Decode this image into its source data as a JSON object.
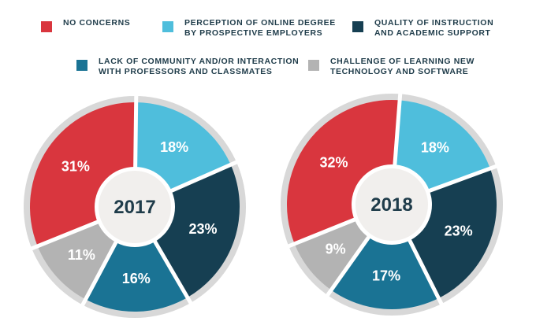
{
  "legend": [
    {
      "key": "no_concerns",
      "label": "NO CONCERNS",
      "color": "#d9363e"
    },
    {
      "key": "perception",
      "label": "PERCEPTION OF ONLINE DEGREE\nBY PROSPECTIVE EMPLOYERS",
      "color": "#4fbedc"
    },
    {
      "key": "quality",
      "label": "QUALITY OF INSTRUCTION\nAND ACADEMIC SUPPORT",
      "color": "#163f52"
    },
    {
      "key": "community",
      "label": "LACK OF COMMUNITY AND/OR INTERACTION\nWITH PROFESSORS AND CLASSMATES",
      "color": "#1a7394"
    },
    {
      "key": "technology",
      "label": "CHALLENGE OF LEARNING NEW\nTECHNOLOGY AND SOFTWARE",
      "color": "#b3b3b3"
    }
  ],
  "chart_data": [
    {
      "type": "pie",
      "title": "2017",
      "categories": [
        "NO CONCERNS",
        "PERCEPTION OF ONLINE DEGREE BY PROSPECTIVE EMPLOYERS",
        "QUALITY OF INSTRUCTION AND ACADEMIC SUPPORT",
        "LACK OF COMMUNITY AND/OR INTERACTION WITH PROFESSORS AND CLASSMATES",
        "CHALLENGE OF LEARNING NEW TECHNOLOGY AND SOFTWARE"
      ],
      "values": [
        31,
        18,
        23,
        16,
        11
      ],
      "labels": [
        "31%",
        "18%",
        "23%",
        "16%",
        "11%"
      ]
    },
    {
      "type": "pie",
      "title": "2018",
      "categories": [
        "NO CONCERNS",
        "PERCEPTION OF ONLINE DEGREE BY PROSPECTIVE EMPLOYERS",
        "QUALITY OF INSTRUCTION AND ACADEMIC SUPPORT",
        "LACK OF COMMUNITY AND/OR INTERACTION WITH PROFESSORS AND CLASSMATES",
        "CHALLENGE OF LEARNING NEW TECHNOLOGY AND SOFTWARE"
      ],
      "values": [
        32,
        18,
        23,
        17,
        9
      ],
      "labels": [
        "32%",
        "18%",
        "23%",
        "17%",
        "9%"
      ]
    }
  ],
  "colors": {
    "ring": "#d8d8d8",
    "center": "#f1efed",
    "gap": "#ffffff"
  }
}
